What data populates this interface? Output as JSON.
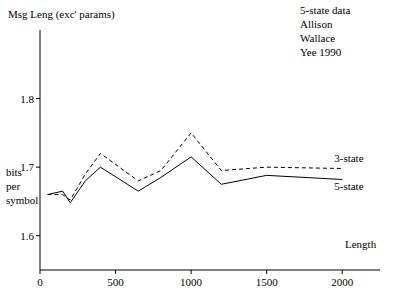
{
  "chart_data": {
    "type": "line",
    "y_label": "Msg Leng (exc' params)",
    "y_unit_label": "bits per symbol",
    "x_label": "Length",
    "annotation": [
      "5-state data",
      "Allison",
      "Wallace",
      "Yee 1990"
    ],
    "x": [
      50,
      150,
      200,
      300,
      400,
      650,
      800,
      1000,
      1200,
      1500,
      2000
    ],
    "series": [
      {
        "name": "3-state",
        "color": "#000000",
        "line_style": "dashed",
        "values": [
          1.66,
          1.66,
          1.652,
          1.69,
          1.72,
          1.68,
          1.695,
          1.75,
          1.695,
          1.7,
          1.698
        ]
      },
      {
        "name": "5-state",
        "color": "#000000",
        "line_style": "solid",
        "values": [
          1.66,
          1.665,
          1.648,
          1.68,
          1.7,
          1.665,
          1.685,
          1.715,
          1.675,
          1.688,
          1.682
        ]
      }
    ],
    "xlim": [
      0,
      2250
    ],
    "ylim": [
      1.55,
      1.9
    ],
    "xticks": [
      0,
      500,
      1000,
      1500,
      2000
    ],
    "yticks": [
      1.6,
      1.7,
      1.8
    ],
    "grid": false
  }
}
